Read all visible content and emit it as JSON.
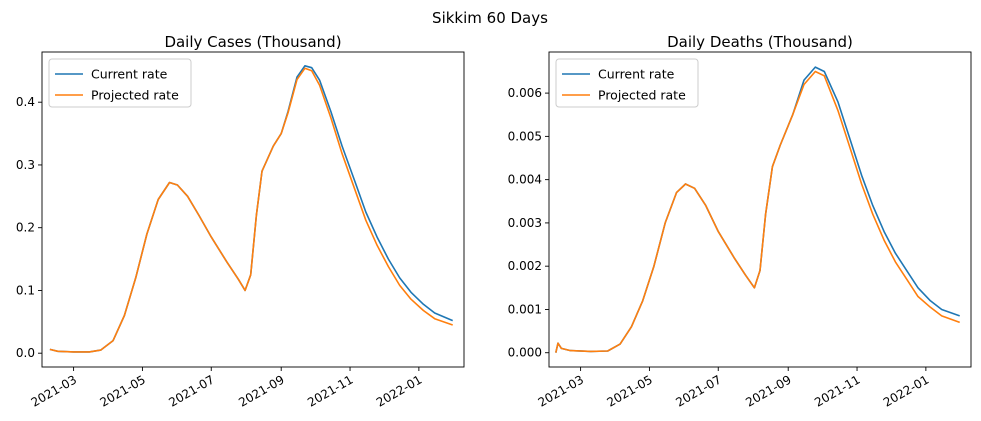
{
  "figure": {
    "title": "Sikkim 60 Days"
  },
  "chart_data": [
    {
      "type": "line",
      "title": "Daily Cases (Thousand)",
      "xlabel": "",
      "ylabel": "",
      "x_ticks": [
        "2021-03",
        "2021-05",
        "2021-07",
        "2021-09",
        "2021-11",
        "2022-01"
      ],
      "y_ticks": [
        "0.0",
        "0.1",
        "0.2",
        "0.3",
        "0.4"
      ],
      "xlim": [
        "2021-02-01",
        "2022-02-10"
      ],
      "ylim": [
        -0.022,
        0.48
      ],
      "legend": "top-left",
      "grid": false,
      "series": [
        {
          "name": "Current rate",
          "color": "#1f77b4",
          "points": [
            [
              "2021-02-08",
              0.006
            ],
            [
              "2021-02-15",
              0.003
            ],
            [
              "2021-03-01",
              0.002
            ],
            [
              "2021-03-15",
              0.002
            ],
            [
              "2021-03-25",
              0.005
            ],
            [
              "2021-04-05",
              0.02
            ],
            [
              "2021-04-15",
              0.06
            ],
            [
              "2021-04-25",
              0.12
            ],
            [
              "2021-05-05",
              0.19
            ],
            [
              "2021-05-15",
              0.245
            ],
            [
              "2021-05-25",
              0.272
            ],
            [
              "2021-06-01",
              0.268
            ],
            [
              "2021-06-10",
              0.25
            ],
            [
              "2021-06-20",
              0.22
            ],
            [
              "2021-07-01",
              0.185
            ],
            [
              "2021-07-15",
              0.145
            ],
            [
              "2021-07-25",
              0.118
            ],
            [
              "2021-07-31",
              0.1
            ],
            [
              "2021-08-05",
              0.125
            ],
            [
              "2021-08-10",
              0.22
            ],
            [
              "2021-08-15",
              0.29
            ],
            [
              "2021-08-25",
              0.33
            ],
            [
              "2021-09-01",
              0.35
            ],
            [
              "2021-09-07",
              0.385
            ],
            [
              "2021-09-15",
              0.44
            ],
            [
              "2021-09-22",
              0.458
            ],
            [
              "2021-09-28",
              0.455
            ],
            [
              "2021-10-05",
              0.435
            ],
            [
              "2021-10-15",
              0.385
            ],
            [
              "2021-10-25",
              0.33
            ],
            [
              "2021-11-05",
              0.275
            ],
            [
              "2021-11-15",
              0.225
            ],
            [
              "2021-11-25",
              0.185
            ],
            [
              "2021-12-05",
              0.15
            ],
            [
              "2021-12-15",
              0.12
            ],
            [
              "2021-12-25",
              0.097
            ],
            [
              "2022-01-05",
              0.078
            ],
            [
              "2022-01-15",
              0.064
            ],
            [
              "2022-01-31",
              0.052
            ]
          ]
        },
        {
          "name": "Projected rate",
          "color": "#ff7f0e",
          "points": [
            [
              "2021-02-08",
              0.006
            ],
            [
              "2021-02-15",
              0.003
            ],
            [
              "2021-03-01",
              0.002
            ],
            [
              "2021-03-15",
              0.002
            ],
            [
              "2021-03-25",
              0.005
            ],
            [
              "2021-04-05",
              0.02
            ],
            [
              "2021-04-15",
              0.06
            ],
            [
              "2021-04-25",
              0.12
            ],
            [
              "2021-05-05",
              0.19
            ],
            [
              "2021-05-15",
              0.245
            ],
            [
              "2021-05-25",
              0.272
            ],
            [
              "2021-06-01",
              0.268
            ],
            [
              "2021-06-10",
              0.25
            ],
            [
              "2021-06-20",
              0.22
            ],
            [
              "2021-07-01",
              0.185
            ],
            [
              "2021-07-15",
              0.145
            ],
            [
              "2021-07-25",
              0.118
            ],
            [
              "2021-07-31",
              0.1
            ],
            [
              "2021-08-05",
              0.125
            ],
            [
              "2021-08-10",
              0.22
            ],
            [
              "2021-08-15",
              0.29
            ],
            [
              "2021-08-25",
              0.33
            ],
            [
              "2021-09-01",
              0.35
            ],
            [
              "2021-09-07",
              0.383
            ],
            [
              "2021-09-15",
              0.436
            ],
            [
              "2021-09-22",
              0.454
            ],
            [
              "2021-09-28",
              0.45
            ],
            [
              "2021-10-05",
              0.427
            ],
            [
              "2021-10-15",
              0.375
            ],
            [
              "2021-10-25",
              0.318
            ],
            [
              "2021-11-05",
              0.262
            ],
            [
              "2021-11-15",
              0.212
            ],
            [
              "2021-11-25",
              0.172
            ],
            [
              "2021-12-05",
              0.138
            ],
            [
              "2021-12-15",
              0.108
            ],
            [
              "2021-12-25",
              0.086
            ],
            [
              "2022-01-05",
              0.068
            ],
            [
              "2022-01-15",
              0.055
            ],
            [
              "2022-01-31",
              0.045
            ]
          ]
        }
      ]
    },
    {
      "type": "line",
      "title": "Daily Deaths (Thousand)",
      "xlabel": "",
      "ylabel": "",
      "x_ticks": [
        "2021-03",
        "2021-05",
        "2021-07",
        "2021-09",
        "2021-11",
        "2022-01"
      ],
      "y_ticks": [
        "0.000",
        "0.001",
        "0.002",
        "0.003",
        "0.004",
        "0.005",
        "0.006"
      ],
      "xlim": [
        "2021-02-01",
        "2022-02-10"
      ],
      "ylim": [
        -0.00033,
        0.00695
      ],
      "legend": "top-left",
      "grid": false,
      "series": [
        {
          "name": "Current rate",
          "color": "#1f77b4",
          "points": [
            [
              "2021-02-07",
              0.0
            ],
            [
              "2021-02-09",
              0.00022
            ],
            [
              "2021-02-12",
              0.0001
            ],
            [
              "2021-02-20",
              5e-05
            ],
            [
              "2021-03-10",
              3e-05
            ],
            [
              "2021-03-25",
              4e-05
            ],
            [
              "2021-04-05",
              0.0002
            ],
            [
              "2021-04-15",
              0.0006
            ],
            [
              "2021-04-25",
              0.0012
            ],
            [
              "2021-05-05",
              0.002
            ],
            [
              "2021-05-15",
              0.003
            ],
            [
              "2021-05-25",
              0.0037
            ],
            [
              "2021-06-02",
              0.0039
            ],
            [
              "2021-06-10",
              0.0038
            ],
            [
              "2021-06-20",
              0.0034
            ],
            [
              "2021-07-01",
              0.0028
            ],
            [
              "2021-07-15",
              0.0022
            ],
            [
              "2021-07-25",
              0.0018
            ],
            [
              "2021-08-02",
              0.0015
            ],
            [
              "2021-08-07",
              0.0019
            ],
            [
              "2021-08-12",
              0.0032
            ],
            [
              "2021-08-18",
              0.0043
            ],
            [
              "2021-08-25",
              0.0048
            ],
            [
              "2021-09-05",
              0.0055
            ],
            [
              "2021-09-15",
              0.0063
            ],
            [
              "2021-09-25",
              0.0066
            ],
            [
              "2021-10-03",
              0.0065
            ],
            [
              "2021-10-15",
              0.0058
            ],
            [
              "2021-10-25",
              0.005
            ],
            [
              "2021-11-05",
              0.0041
            ],
            [
              "2021-11-15",
              0.0034
            ],
            [
              "2021-11-25",
              0.0028
            ],
            [
              "2021-12-05",
              0.0023
            ],
            [
              "2021-12-15",
              0.0019
            ],
            [
              "2021-12-25",
              0.0015
            ],
            [
              "2022-01-05",
              0.0012
            ],
            [
              "2022-01-15",
              0.001
            ],
            [
              "2022-01-31",
              0.00085
            ]
          ]
        },
        {
          "name": "Projected rate",
          "color": "#ff7f0e",
          "points": [
            [
              "2021-02-07",
              0.0
            ],
            [
              "2021-02-09",
              0.00022
            ],
            [
              "2021-02-12",
              0.0001
            ],
            [
              "2021-02-20",
              5e-05
            ],
            [
              "2021-03-10",
              3e-05
            ],
            [
              "2021-03-25",
              4e-05
            ],
            [
              "2021-04-05",
              0.0002
            ],
            [
              "2021-04-15",
              0.0006
            ],
            [
              "2021-04-25",
              0.0012
            ],
            [
              "2021-05-05",
              0.002
            ],
            [
              "2021-05-15",
              0.003
            ],
            [
              "2021-05-25",
              0.0037
            ],
            [
              "2021-06-02",
              0.0039
            ],
            [
              "2021-06-10",
              0.0038
            ],
            [
              "2021-06-20",
              0.0034
            ],
            [
              "2021-07-01",
              0.0028
            ],
            [
              "2021-07-15",
              0.0022
            ],
            [
              "2021-07-25",
              0.0018
            ],
            [
              "2021-08-02",
              0.0015
            ],
            [
              "2021-08-07",
              0.0019
            ],
            [
              "2021-08-12",
              0.0032
            ],
            [
              "2021-08-18",
              0.0043
            ],
            [
              "2021-08-25",
              0.0048
            ],
            [
              "2021-09-05",
              0.0055
            ],
            [
              "2021-09-15",
              0.0062
            ],
            [
              "2021-09-25",
              0.0065
            ],
            [
              "2021-10-03",
              0.0064
            ],
            [
              "2021-10-15",
              0.0056
            ],
            [
              "2021-10-25",
              0.0048
            ],
            [
              "2021-11-05",
              0.0039
            ],
            [
              "2021-11-15",
              0.0032
            ],
            [
              "2021-11-25",
              0.0026
            ],
            [
              "2021-12-05",
              0.0021
            ],
            [
              "2021-12-15",
              0.0017
            ],
            [
              "2021-12-25",
              0.0013
            ],
            [
              "2022-01-05",
              0.00105
            ],
            [
              "2022-01-15",
              0.00085
            ],
            [
              "2022-01-31",
              0.0007
            ]
          ]
        }
      ]
    }
  ]
}
